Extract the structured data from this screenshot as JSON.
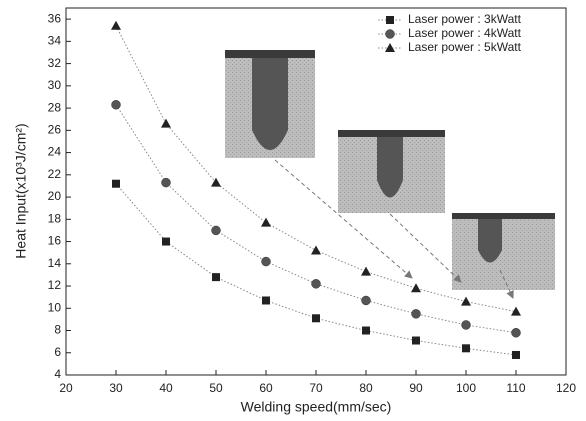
{
  "chart_data": {
    "type": "scatter",
    "x_label": "Welding speed(mm/sec)",
    "y_label": "Heat Input(x10³J/cm²)",
    "x": [
      30,
      40,
      50,
      60,
      70,
      80,
      90,
      100,
      110
    ],
    "series": [
      {
        "name": "Laser power : 3kWatt",
        "color": "#222222",
        "marker": "square",
        "values": [
          21.2,
          16.0,
          12.8,
          10.7,
          9.1,
          8.0,
          7.1,
          6.4,
          5.8
        ]
      },
      {
        "name": "Laser power : 4kWatt",
        "color": "#555555",
        "marker": "circle",
        "values": [
          28.3,
          21.3,
          17.0,
          14.2,
          12.2,
          10.7,
          9.5,
          8.5,
          7.8
        ]
      },
      {
        "name": "Laser power : 5kWatt",
        "color": "#222222",
        "marker": "triangle",
        "values": [
          35.4,
          26.6,
          21.3,
          17.7,
          15.2,
          13.3,
          11.8,
          10.6,
          9.7
        ]
      }
    ],
    "xlim": [
      20,
      120
    ],
    "xticks": [
      20,
      30,
      40,
      50,
      60,
      70,
      80,
      90,
      100,
      110,
      120
    ],
    "ylim": [
      4,
      37
    ],
    "yticks": [
      4,
      6,
      8,
      10,
      12,
      14,
      16,
      18,
      20,
      22,
      24,
      26,
      28,
      30,
      32,
      34,
      36
    ],
    "legend": "upper right"
  }
}
